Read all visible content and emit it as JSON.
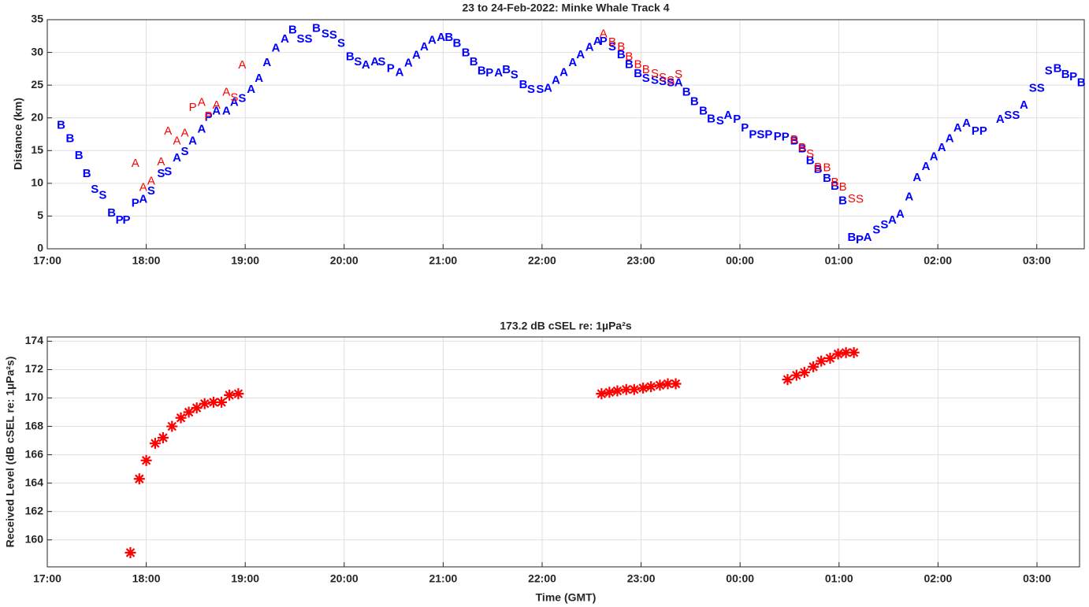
{
  "chart_data": [
    {
      "type": "scatter",
      "title": "23 to 24-Feb-2022: Minke Whale Track 4",
      "y_label": "Distance (km)",
      "xlim": [
        17,
        27.48
      ],
      "ylim": [
        0,
        35
      ],
      "grid": true,
      "xticks": [
        {
          "value": 17,
          "label": "17:00"
        },
        {
          "value": 18,
          "label": "18:00"
        },
        {
          "value": 19,
          "label": "19:00"
        },
        {
          "value": 20,
          "label": "20:00"
        },
        {
          "value": 21,
          "label": "21:00"
        },
        {
          "value": 22,
          "label": "22:00"
        },
        {
          "value": 23,
          "label": "23:00"
        },
        {
          "value": 24,
          "label": "00:00"
        },
        {
          "value": 25,
          "label": "01:00"
        },
        {
          "value": 26,
          "label": "02:00"
        },
        {
          "value": 27,
          "label": "03:00"
        }
      ],
      "yticks": [
        0,
        5,
        10,
        15,
        20,
        25,
        30,
        35
      ],
      "series": [
        {
          "color": "#0000ff",
          "marker": "letter",
          "x": [
            17.14,
            17.23,
            17.32,
            17.4,
            17.48,
            17.56,
            17.65,
            17.73,
            17.8,
            17.89,
            17.97,
            18.05,
            18.15,
            18.22,
            18.31,
            18.39,
            18.47,
            18.56,
            18.63,
            18.71,
            18.81,
            18.89,
            18.97,
            19.06,
            19.14,
            19.22,
            19.31,
            19.4,
            19.48,
            19.56,
            19.64,
            19.72,
            19.81,
            19.89,
            19.97,
            20.06,
            20.14,
            20.22,
            20.31,
            20.38,
            20.47,
            20.56,
            20.65,
            20.73,
            20.81,
            20.89,
            20.98,
            21.06,
            21.14,
            21.23,
            21.31,
            21.39,
            21.47,
            21.56,
            21.64,
            21.72,
            21.81,
            21.89,
            21.98,
            22.06,
            22.14,
            22.22,
            22.31,
            22.39,
            22.48,
            22.56,
            22.62,
            22.71,
            22.8,
            22.88,
            22.97,
            23.05,
            23.14,
            23.22,
            23.3,
            23.38,
            23.46,
            23.54,
            23.63,
            23.71,
            23.8,
            23.88,
            23.97,
            24.05,
            24.13,
            24.21,
            24.29,
            24.38,
            24.46,
            24.55,
            24.63,
            24.71,
            24.79,
            24.88,
            24.96,
            25.04,
            25.13,
            25.21,
            25.29,
            25.38,
            25.46,
            25.54,
            25.62,
            25.71,
            25.79,
            25.88,
            25.96,
            26.04,
            26.12,
            26.2,
            26.29,
            26.38,
            26.46,
            26.63,
            26.71,
            26.79,
            26.87,
            26.96,
            27.04,
            27.12,
            27.21,
            27.29,
            27.37,
            27.45
          ],
          "values": [
            18.8,
            16.8,
            14.2,
            11.4,
            9.0,
            8.1,
            5.4,
            4.3,
            4.3,
            6.9,
            7.5,
            8.8,
            11.4,
            11.7,
            13.8,
            14.8,
            16.4,
            18.2,
            20.0,
            21.0,
            21.0,
            22.3,
            22.9,
            24.3,
            26.0,
            28.4,
            30.6,
            32.0,
            33.4,
            32.0,
            32.0,
            33.6,
            32.8,
            32.6,
            31.3,
            29.3,
            28.5,
            28.0,
            28.5,
            28.5,
            27.5,
            26.9,
            28.3,
            29.5,
            30.8,
            31.8,
            32.2,
            32.2,
            31.3,
            29.9,
            28.5,
            27.1,
            26.8,
            26.8,
            27.3,
            26.5,
            25.0,
            24.3,
            24.3,
            24.5,
            25.7,
            26.9,
            28.4,
            29.6,
            30.7,
            31.6,
            31.6,
            30.8,
            29.6,
            28.1,
            26.7,
            26.0,
            25.7,
            25.5,
            25.3,
            25.3,
            23.9,
            22.4,
            21.0,
            19.8,
            19.5,
            20.3,
            19.7,
            18.4,
            17.4,
            17.4,
            17.4,
            17.1,
            17.0,
            16.4,
            15.2,
            13.4,
            12.1,
            10.7,
            9.5,
            7.3,
            1.7,
            1.3,
            1.7,
            2.8,
            3.6,
            4.3,
            5.2,
            7.9,
            10.8,
            12.5,
            14.0,
            15.4,
            16.8,
            18.4,
            19.1,
            17.9,
            17.9,
            19.7,
            20.3,
            20.3,
            21.9,
            24.5,
            24.5,
            27.1,
            27.5,
            26.6,
            26.2,
            25.3
          ],
          "labels": [
            "B",
            "B",
            "B",
            "B",
            "S",
            "S",
            "B",
            "P",
            "P",
            "P",
            "A",
            "S",
            "S",
            "S",
            "A",
            "S",
            "A",
            "A",
            "P",
            "A",
            "A",
            "A",
            "S",
            "A",
            "A",
            "A",
            "A",
            "A",
            "B",
            "S",
            "S",
            "B",
            "S",
            "S",
            "S",
            "B",
            "S",
            "A",
            "A",
            "S",
            "P",
            "A",
            "A",
            "A",
            "A",
            "A",
            "A",
            "B",
            "B",
            "B",
            "B",
            "B",
            "P",
            "A",
            "B",
            "S",
            "B",
            "S",
            "S",
            "A",
            "A",
            "A",
            "A",
            "A",
            "A",
            "A",
            "P",
            "S",
            "B",
            "B",
            "B",
            "S",
            "S",
            "S",
            "S",
            "A",
            "B",
            "B",
            "B",
            "B",
            "S",
            "A",
            "P",
            "P",
            "P",
            "S",
            "P",
            "P",
            "P",
            "B",
            "B",
            "B",
            "B",
            "B",
            "B",
            "B",
            "B",
            "P",
            "A",
            "S",
            "S",
            "A",
            "A",
            "A",
            "A",
            "A",
            "A",
            "A",
            "A",
            "A",
            "A",
            "P",
            "P",
            "A",
            "S",
            "S",
            "A",
            "S",
            "S",
            "S",
            "B",
            "B",
            "P",
            "B"
          ]
        },
        {
          "color": "#ff0000",
          "marker": "letter",
          "x": [
            17.89,
            17.97,
            18.05,
            18.15,
            18.22,
            18.31,
            18.39,
            18.47,
            18.56,
            18.63,
            18.71,
            18.81,
            18.89,
            18.97,
            22.62,
            22.71,
            22.8,
            22.88,
            22.97,
            23.05,
            23.14,
            23.22,
            23.3,
            23.38,
            24.55,
            24.63,
            24.71,
            24.79,
            24.88,
            24.96,
            25.04,
            25.13,
            25.21
          ],
          "values": [
            13.0,
            9.3,
            10.3,
            13.2,
            17.9,
            16.4,
            17.6,
            21.5,
            22.3,
            20.2,
            21.9,
            23.9,
            23.0,
            28.0,
            32.8,
            31.5,
            30.8,
            29.3,
            28.1,
            27.3,
            26.7,
            26.1,
            25.6,
            26.6,
            16.6,
            15.4,
            14.4,
            12.4,
            12.3,
            10.1,
            9.4,
            7.6,
            7.5
          ],
          "labels": [
            "A",
            "A",
            "A",
            "A",
            "A",
            "A",
            "A",
            "P",
            "A",
            "P",
            "A",
            "A",
            "S",
            "A",
            "A",
            "B",
            "B",
            "B",
            "B",
            "B",
            "S",
            "S",
            "S",
            "S",
            "B",
            "B",
            "S",
            "B",
            "B",
            "B",
            "B",
            "S",
            "S"
          ]
        }
      ]
    },
    {
      "type": "scatter",
      "title": "173.2 dB cSEL re: 1µPa²s",
      "x_label": "Time (GMT)",
      "y_label": "Received Level (dB cSEL re: 1µPa²s)",
      "xlim": [
        17,
        27.43
      ],
      "ylim": [
        158.1,
        174.3
      ],
      "grid": true,
      "xticks": [
        {
          "value": 17,
          "label": "17:00"
        },
        {
          "value": 18,
          "label": "18:00"
        },
        {
          "value": 19,
          "label": "19:00"
        },
        {
          "value": 20,
          "label": "20:00"
        },
        {
          "value": 21,
          "label": "21:00"
        },
        {
          "value": 22,
          "label": "22:00"
        },
        {
          "value": 23,
          "label": "23:00"
        },
        {
          "value": 24,
          "label": "00:00"
        },
        {
          "value": 25,
          "label": "01:00"
        },
        {
          "value": 26,
          "label": "02:00"
        },
        {
          "value": 27,
          "label": "03:00"
        }
      ],
      "yticks": [
        160,
        162,
        164,
        166,
        168,
        170,
        172,
        174
      ],
      "series": [
        {
          "color": "#ff0000",
          "marker": "asterisk",
          "x": [
            17.84,
            17.93,
            18.0,
            18.09,
            18.17,
            18.26,
            18.35,
            18.43,
            18.51,
            18.59,
            18.68,
            18.76,
            18.84,
            18.93,
            22.6,
            22.68,
            22.76,
            22.85,
            22.93,
            23.02,
            23.1,
            23.19,
            23.27,
            23.35,
            24.48,
            24.57,
            24.65,
            24.74,
            24.82,
            24.91,
            24.99,
            25.07,
            25.15
          ],
          "values": [
            159.1,
            164.3,
            165.6,
            166.8,
            167.2,
            168.0,
            168.6,
            169.0,
            169.3,
            169.6,
            169.7,
            169.7,
            170.2,
            170.3,
            170.3,
            170.4,
            170.5,
            170.6,
            170.6,
            170.7,
            170.8,
            170.9,
            171.0,
            171.0,
            171.3,
            171.6,
            171.8,
            172.2,
            172.6,
            172.8,
            173.1,
            173.2,
            173.2
          ]
        }
      ]
    }
  ]
}
